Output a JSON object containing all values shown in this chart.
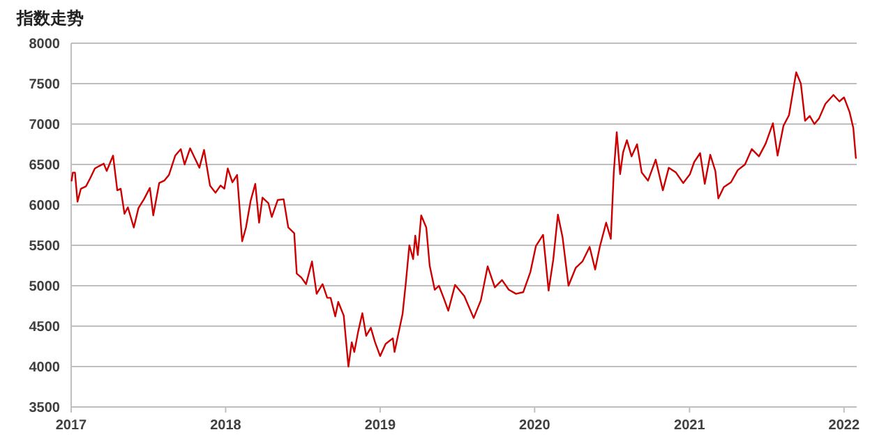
{
  "chart_data": {
    "type": "line",
    "title": "指数走势",
    "color": "#cc0000",
    "grid": "y",
    "xlim": [
      "2017-01-01",
      "2022-01-31"
    ],
    "ylim": [
      3500,
      8000
    ],
    "xticks": [
      "2017",
      "2018",
      "2019",
      "2020",
      "2021",
      "2022"
    ],
    "yticks": [
      3500,
      4000,
      4500,
      5000,
      5500,
      6000,
      6500,
      7000,
      7500,
      8000
    ],
    "x": [
      "2017-01-02",
      "2017-01-05",
      "2017-01-10",
      "2017-01-16",
      "2017-01-24",
      "2017-02-05",
      "2017-02-15",
      "2017-02-26",
      "2017-03-08",
      "2017-03-19",
      "2017-03-26",
      "2017-04-10",
      "2017-04-20",
      "2017-04-28",
      "2017-05-07",
      "2017-05-15",
      "2017-05-29",
      "2017-06-09",
      "2017-06-22",
      "2017-07-06",
      "2017-07-14",
      "2017-07-28",
      "2017-08-09",
      "2017-08-20",
      "2017-09-04",
      "2017-09-17",
      "2017-09-26",
      "2017-10-09",
      "2017-10-20",
      "2017-10-31",
      "2017-11-11",
      "2017-11-25",
      "2017-12-08",
      "2017-12-20",
      "2017-12-29",
      "2018-01-06",
      "2018-01-17",
      "2018-01-28",
      "2018-02-09",
      "2018-02-18",
      "2018-03-01",
      "2018-03-12",
      "2018-03-21",
      "2018-03-29",
      "2018-04-12",
      "2018-04-20",
      "2018-05-04",
      "2018-05-18",
      "2018-05-29",
      "2018-06-12",
      "2018-06-18",
      "2018-06-29",
      "2018-07-10",
      "2018-07-24",
      "2018-08-04",
      "2018-08-18",
      "2018-08-29",
      "2018-09-06",
      "2018-09-17",
      "2018-09-24",
      "2018-10-07",
      "2018-10-18",
      "2018-10-26",
      "2018-11-01",
      "2018-11-10",
      "2018-11-20",
      "2018-11-29",
      "2018-12-10",
      "2018-12-20",
      "2019-01-01",
      "2019-01-14",
      "2019-01-31",
      "2019-02-04",
      "2019-02-12",
      "2019-02-23",
      "2019-03-03",
      "2019-03-11",
      "2019-03-20",
      "2019-03-25",
      "2019-03-31",
      "2019-04-08",
      "2019-04-20",
      "2019-04-28",
      "2019-05-10",
      "2019-05-20",
      "2019-05-31",
      "2019-06-11",
      "2019-06-27",
      "2019-07-19",
      "2019-08-10",
      "2019-08-27",
      "2019-09-12",
      "2019-09-29",
      "2019-10-16",
      "2019-11-01",
      "2019-11-18",
      "2019-12-05",
      "2019-12-22",
      "2020-01-04",
      "2020-01-21",
      "2020-02-03",
      "2020-02-14",
      "2020-02-25",
      "2020-03-07",
      "2020-03-21",
      "2020-04-07",
      "2020-04-23",
      "2020-05-10",
      "2020-05-23",
      "2020-06-03",
      "2020-06-18",
      "2020-06-29",
      "2020-07-06",
      "2020-07-13",
      "2020-07-21",
      "2020-07-28",
      "2020-08-06",
      "2020-08-17",
      "2020-08-30",
      "2020-09-10",
      "2020-09-25",
      "2020-10-13",
      "2020-10-30",
      "2020-11-13",
      "2020-11-30",
      "2020-12-17",
      "2021-01-02",
      "2021-01-12",
      "2021-01-26",
      "2021-02-06",
      "2021-02-19",
      "2021-03-03",
      "2021-03-10",
      "2021-03-23",
      "2021-04-09",
      "2021-04-25",
      "2021-05-12",
      "2021-05-28",
      "2021-06-14",
      "2021-06-30",
      "2021-07-17",
      "2021-07-28",
      "2021-08-11",
      "2021-08-24",
      "2021-09-10",
      "2021-09-21",
      "2021-10-01",
      "2021-10-12",
      "2021-10-23",
      "2021-11-03",
      "2021-11-18",
      "2021-12-07",
      "2021-12-21",
      "2022-01-01",
      "2022-01-14",
      "2022-01-23",
      "2022-01-29"
    ],
    "values": [
      6300,
      6400,
      6400,
      6040,
      6200,
      6230,
      6330,
      6450,
      6480,
      6510,
      6420,
      6610,
      6180,
      6200,
      5890,
      5970,
      5720,
      5960,
      6070,
      6210,
      5870,
      6270,
      6300,
      6370,
      6610,
      6690,
      6500,
      6700,
      6580,
      6460,
      6680,
      6240,
      6150,
      6240,
      6200,
      6450,
      6280,
      6370,
      5550,
      5720,
      6050,
      6260,
      5780,
      6090,
      6020,
      5850,
      6060,
      6070,
      5720,
      5650,
      5150,
      5100,
      5020,
      5300,
      4900,
      5020,
      4850,
      4850,
      4620,
      4800,
      4630,
      4000,
      4300,
      4180,
      4430,
      4660,
      4380,
      4480,
      4300,
      4130,
      4280,
      4350,
      4180,
      4380,
      4650,
      5050,
      5500,
      5330,
      5620,
      5380,
      5870,
      5720,
      5250,
      4950,
      5000,
      4850,
      4690,
      5010,
      4870,
      4600,
      4820,
      5240,
      4980,
      5070,
      4950,
      4900,
      4920,
      5170,
      5490,
      5630,
      4940,
      5320,
      5880,
      5600,
      5000,
      5220,
      5300,
      5480,
      5200,
      5480,
      5780,
      5580,
      6400,
      6900,
      6380,
      6650,
      6800,
      6600,
      6750,
      6400,
      6300,
      6560,
      6180,
      6460,
      6400,
      6270,
      6380,
      6530,
      6640,
      6260,
      6620,
      6420,
      6080,
      6220,
      6280,
      6430,
      6500,
      6690,
      6600,
      6760,
      7010,
      6610,
      6980,
      7110,
      7640,
      7500,
      7040,
      7100,
      7000,
      7070,
      7250,
      7360,
      7280,
      7330,
      7150,
      6950,
      6580
    ]
  }
}
